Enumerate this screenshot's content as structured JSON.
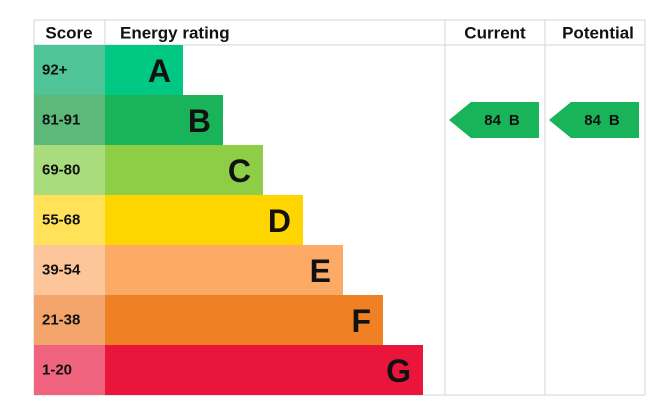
{
  "header": {
    "score": "Score",
    "rating": "Energy rating",
    "current": "Current",
    "potential": "Potential"
  },
  "bands": [
    {
      "score": "92+",
      "letter": "A",
      "color": "#00c781",
      "score_color": "#4fc497"
    },
    {
      "score": "81-91",
      "letter": "B",
      "color": "#19b459",
      "score_color": "#5cb97a"
    },
    {
      "score": "69-80",
      "letter": "C",
      "color": "#8dce46",
      "score_color": "#a8dc7c"
    },
    {
      "score": "55-68",
      "letter": "D",
      "color": "#ffd500",
      "score_color": "#ffe15a"
    },
    {
      "score": "39-54",
      "letter": "E",
      "color": "#fcaa65",
      "score_color": "#fdc59a"
    },
    {
      "score": "21-38",
      "letter": "F",
      "color": "#ef8023",
      "score_color": "#f3a56c"
    },
    {
      "score": "1-20",
      "letter": "G",
      "color": "#e9153b",
      "score_color": "#f0647f"
    }
  ],
  "current": {
    "score": 84,
    "letter": "B"
  },
  "potential": {
    "score": 84,
    "letter": "B"
  }
}
